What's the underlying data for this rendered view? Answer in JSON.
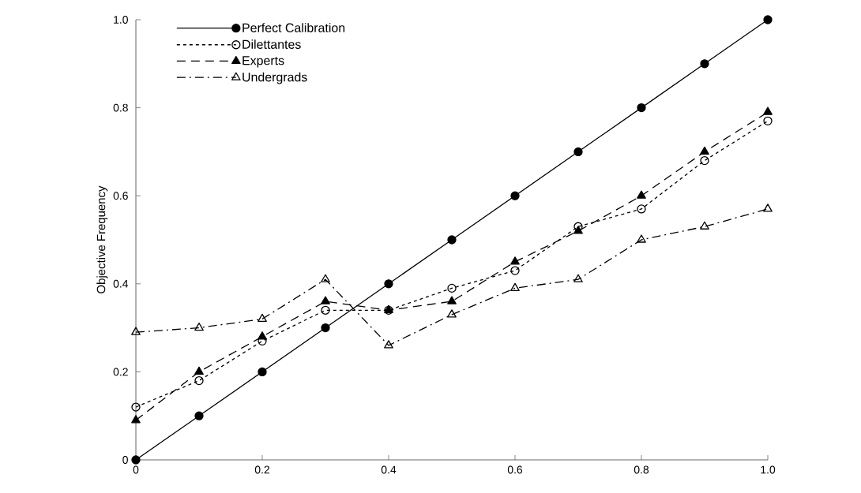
{
  "chart_data": {
    "type": "line",
    "ylabel": "Objective Frequency",
    "x": [
      0,
      0.1,
      0.2,
      0.3,
      0.4,
      0.5,
      0.6,
      0.7,
      0.8,
      0.9,
      1.0
    ],
    "xlim": [
      0,
      1
    ],
    "ylim": [
      0,
      1
    ],
    "xticks": [
      0,
      0.2,
      0.4,
      0.6,
      0.8,
      {
        "value": 1,
        "label": "1.0"
      }
    ],
    "yticks": [
      0,
      0.2,
      0.4,
      0.6,
      0.8,
      {
        "value": 1,
        "label": "1.0"
      }
    ],
    "grid": false,
    "legend": "top left",
    "series": [
      {
        "name": "Perfect Calibration",
        "color": "#000000",
        "marker": "circle",
        "line_style": "solid",
        "values": [
          0,
          0.1,
          0.2,
          0.3,
          0.4,
          0.5,
          0.6,
          0.7,
          0.8,
          0.9,
          1.0
        ]
      },
      {
        "name": "Dilettantes",
        "color": "#000000",
        "marker": "circle-open",
        "line_style": "dotted",
        "values": [
          0.12,
          0.18,
          0.27,
          0.34,
          0.34,
          0.39,
          0.43,
          0.53,
          0.57,
          0.68,
          0.77
        ]
      },
      {
        "name": "Experts",
        "color": "#000000",
        "marker": "triangle",
        "line_style": "dashed",
        "values": [
          0.09,
          0.2,
          0.28,
          0.36,
          0.34,
          0.36,
          0.45,
          0.52,
          0.6,
          0.7,
          0.79
        ]
      },
      {
        "name": "Undergrads",
        "color": "#000000",
        "marker": "triangle-open",
        "line_style": "dashdot",
        "values": [
          0.29,
          0.3,
          0.32,
          0.41,
          0.26,
          0.33,
          0.39,
          0.41,
          0.5,
          0.53,
          0.57
        ]
      }
    ]
  }
}
